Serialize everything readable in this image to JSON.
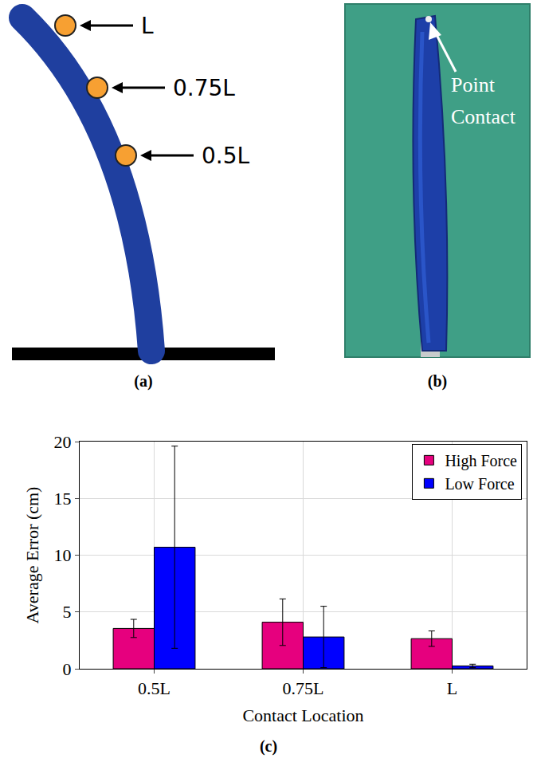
{
  "diagram": {
    "caption": "(a)",
    "markers": [
      {
        "label": "L"
      },
      {
        "label": "0.75L"
      },
      {
        "label": "0.5L"
      }
    ]
  },
  "photo": {
    "caption": "(b)",
    "label": "Point Contact"
  },
  "chart_data": {
    "type": "bar",
    "caption": "(c)",
    "x_label": "Contact Location",
    "y_label": "Average Error (cm)",
    "categories": [
      "0.5L",
      "0.75L",
      "L"
    ],
    "series": [
      {
        "name": "High Force",
        "color": "#e6007e",
        "values": [
          3.55,
          4.1,
          2.65
        ],
        "errors": [
          0.8,
          2.05,
          0.68
        ]
      },
      {
        "name": "Low Force",
        "color": "#0000ff",
        "values": [
          10.7,
          2.8,
          0.25
        ],
        "errors": [
          8.9,
          2.7,
          0.15
        ]
      }
    ],
    "ylim": [
      0,
      20
    ],
    "yticks": [
      0,
      5,
      10,
      15,
      20
    ],
    "grid": true,
    "legend": "top right"
  }
}
